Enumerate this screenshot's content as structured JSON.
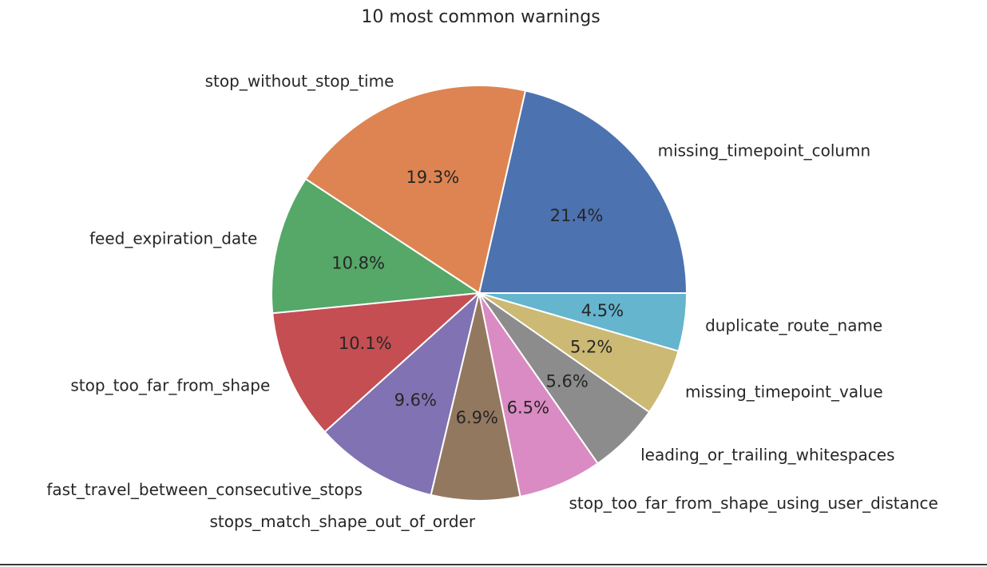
{
  "chart_data": {
    "type": "pie",
    "title": "10 most common warnings",
    "categories": [
      "missing_timepoint_column",
      "stop_without_stop_time",
      "feed_expiration_date",
      "stop_too_far_from_shape",
      "fast_travel_between_consecutive_stops",
      "stops_match_shape_out_of_order",
      "stop_too_far_from_shape_using_user_distance",
      "leading_or_trailing_whitespaces",
      "missing_timepoint_value",
      "duplicate_route_name"
    ],
    "values": [
      21.4,
      19.3,
      10.8,
      10.1,
      9.6,
      6.9,
      6.5,
      5.6,
      5.2,
      4.5
    ],
    "percent_labels": [
      "21.4%",
      "19.3%",
      "10.8%",
      "10.1%",
      "9.6%",
      "6.9%",
      "6.5%",
      "5.6%",
      "5.2%",
      "4.5%"
    ],
    "colors": [
      "#4c72b0",
      "#dd8452",
      "#55a868",
      "#c44e52",
      "#8172b3",
      "#937860",
      "#da8bc3",
      "#8c8c8c",
      "#ccb974",
      "#64b5cd"
    ],
    "start_angle_deg": 0,
    "direction": "counterclockwise",
    "legend": "none"
  }
}
